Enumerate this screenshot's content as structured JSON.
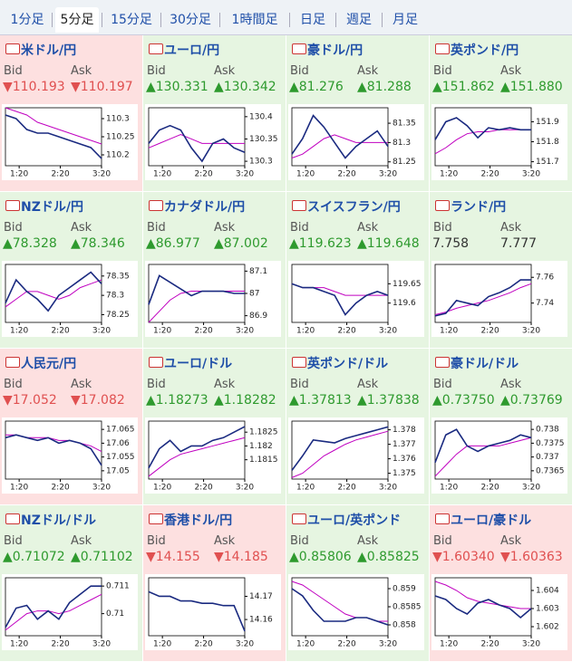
{
  "tabs": [
    "1分足",
    "5分足",
    "15分足",
    "30分足",
    "1時間足",
    "日足",
    "週足",
    "月足"
  ],
  "selected_tab": 1,
  "labels": {
    "bid": "Bid",
    "ask": "Ask"
  },
  "time_axis": {
    "xlim": [
      60,
      200
    ],
    "xticks": [
      {
        "value": 80,
        "label": "1:20"
      },
      {
        "value": 140,
        "label": "2:20"
      },
      {
        "value": 200,
        "label": "3:20"
      }
    ]
  },
  "chart_data": [
    {
      "type": "line",
      "title": "米ドル/円",
      "trend": "down",
      "bid": "▼110.193",
      "ask": "▼110.197",
      "ylim": [
        110.17,
        110.33
      ],
      "yticks": [
        110.3,
        110.25,
        110.2
      ],
      "color": "#1a2a80",
      "ma_color": "#c000c0",
      "values": [
        110.31,
        110.3,
        110.27,
        110.26,
        110.26,
        110.25,
        110.24,
        110.23,
        110.22,
        110.19
      ],
      "ma": [
        110.33,
        110.32,
        110.31,
        110.29,
        110.28,
        110.27,
        110.26,
        110.25,
        110.24,
        110.23
      ]
    },
    {
      "type": "line",
      "title": "ユーロ/円",
      "trend": "up",
      "bid": "▲130.331",
      "ask": "▲130.342",
      "ylim": [
        130.29,
        130.42
      ],
      "yticks": [
        130.4,
        130.35,
        130.3
      ],
      "color": "#1a2a80",
      "ma_color": "#c000c0",
      "values": [
        130.34,
        130.37,
        130.38,
        130.37,
        130.33,
        130.3,
        130.34,
        130.35,
        130.33,
        130.32
      ],
      "ma": [
        130.33,
        130.34,
        130.35,
        130.36,
        130.35,
        130.34,
        130.34,
        130.34,
        130.34,
        130.34
      ]
    },
    {
      "type": "line",
      "title": "豪ドル/円",
      "trend": "up",
      "bid": "▲81.276",
      "ask": "▲81.288",
      "ylim": [
        81.24,
        81.39
      ],
      "yticks": [
        81.35,
        81.3,
        81.25
      ],
      "color": "#1a2a80",
      "ma_color": "#c000c0",
      "values": [
        81.27,
        81.31,
        81.37,
        81.34,
        81.3,
        81.26,
        81.29,
        81.31,
        81.33,
        81.29
      ],
      "ma": [
        81.26,
        81.27,
        81.29,
        81.31,
        81.32,
        81.31,
        81.3,
        81.3,
        81.3,
        81.3
      ]
    },
    {
      "type": "line",
      "title": "英ポンド/円",
      "trend": "up",
      "bid": "▲151.862",
      "ask": "▲151.880",
      "ylim": [
        151.68,
        151.97
      ],
      "yticks": [
        151.9,
        151.8,
        151.7
      ],
      "color": "#1a2a80",
      "ma_color": "#c000c0",
      "values": [
        151.81,
        151.9,
        151.92,
        151.88,
        151.82,
        151.87,
        151.86,
        151.87,
        151.86,
        151.86
      ],
      "ma": [
        151.74,
        151.77,
        151.81,
        151.84,
        151.85,
        151.85,
        151.86,
        151.86,
        151.86,
        151.86
      ]
    },
    {
      "type": "line",
      "title": "NZドル/円",
      "trend": "up",
      "bid": "▲78.328",
      "ask": "▲78.346",
      "ylim": [
        78.23,
        78.38
      ],
      "yticks": [
        78.35,
        78.3,
        78.25
      ],
      "color": "#1a2a80",
      "ma_color": "#c000c0",
      "values": [
        78.28,
        78.34,
        78.31,
        78.29,
        78.26,
        78.3,
        78.32,
        78.34,
        78.36,
        78.33
      ],
      "ma": [
        78.27,
        78.29,
        78.31,
        78.31,
        78.3,
        78.29,
        78.3,
        78.32,
        78.33,
        78.34
      ]
    },
    {
      "type": "line",
      "title": "カナダドル/円",
      "trend": "up",
      "bid": "▲86.977",
      "ask": "▲87.002",
      "ylim": [
        86.87,
        87.13
      ],
      "yticks": [
        87.1,
        87,
        86.9
      ],
      "color": "#1a2a80",
      "ma_color": "#c000c0",
      "values": [
        86.95,
        87.08,
        87.05,
        87.02,
        86.99,
        87.01,
        87.01,
        87.01,
        87.0,
        87.0
      ],
      "ma": [
        86.87,
        86.92,
        86.97,
        87.0,
        87.01,
        87.01,
        87.01,
        87.01,
        87.01,
        87.01
      ]
    },
    {
      "type": "line",
      "title": "スイスフラン/円",
      "trend": "up",
      "bid": "▲119.623",
      "ask": "▲119.648",
      "ylim": [
        119.55,
        119.7
      ],
      "yticks": [
        119.65,
        119.6
      ],
      "color": "#1a2a80",
      "ma_color": "#c000c0",
      "values": [
        119.65,
        119.64,
        119.64,
        119.63,
        119.62,
        119.57,
        119.6,
        119.62,
        119.63,
        119.62
      ],
      "ma": [
        119.65,
        119.64,
        119.64,
        119.64,
        119.63,
        119.62,
        119.62,
        119.62,
        119.62,
        119.62
      ]
    },
    {
      "type": "line",
      "title": "ランド/円",
      "trend": "flat",
      "bid": "7.758",
      "ask": "7.777",
      "ylim": [
        7.725,
        7.77
      ],
      "yticks": [
        7.76,
        7.74
      ],
      "color": "#1a2a80",
      "ma_color": "#c000c0",
      "values": [
        7.73,
        7.732,
        7.742,
        7.74,
        7.738,
        7.745,
        7.748,
        7.752,
        7.758,
        7.758
      ],
      "ma": [
        7.731,
        7.733,
        7.736,
        7.738,
        7.74,
        7.742,
        7.745,
        7.748,
        7.752,
        7.755
      ]
    },
    {
      "type": "line",
      "title": "人民元/円",
      "trend": "down",
      "bid": "▼17.052",
      "ask": "▼17.082",
      "ylim": [
        17.047,
        17.068
      ],
      "yticks": [
        17.065,
        17.06,
        17.055,
        17.05
      ],
      "color": "#1a2a80",
      "ma_color": "#c000c0",
      "values": [
        17.062,
        17.063,
        17.062,
        17.061,
        17.062,
        17.06,
        17.061,
        17.06,
        17.058,
        17.052
      ],
      "ma": [
        17.063,
        17.063,
        17.062,
        17.062,
        17.062,
        17.061,
        17.061,
        17.06,
        17.059,
        17.057
      ]
    },
    {
      "type": "line",
      "title": "ユーロ/ドル",
      "trend": "up",
      "bid": "▲1.18273",
      "ask": "▲1.18282",
      "ylim": [
        1.1808,
        1.1829
      ],
      "yticks": [
        1.1825,
        1.182,
        1.1815
      ],
      "color": "#1a2a80",
      "ma_color": "#c000c0",
      "values": [
        1.1812,
        1.1819,
        1.1822,
        1.1818,
        1.182,
        1.182,
        1.1822,
        1.1823,
        1.1825,
        1.1827
      ],
      "ma": [
        1.1809,
        1.1812,
        1.1815,
        1.1817,
        1.1818,
        1.1819,
        1.182,
        1.1821,
        1.1822,
        1.1823
      ]
    },
    {
      "type": "line",
      "title": "英ポンド/ドル",
      "trend": "up",
      "bid": "▲1.37813",
      "ask": "▲1.37838",
      "ylim": [
        1.3746,
        1.3786
      ],
      "yticks": [
        1.378,
        1.377,
        1.376,
        1.375
      ],
      "color": "#1a2a80",
      "ma_color": "#c000c0",
      "values": [
        1.3752,
        1.3762,
        1.3773,
        1.3772,
        1.3771,
        1.3774,
        1.3776,
        1.3778,
        1.378,
        1.3782
      ],
      "ma": [
        1.3747,
        1.375,
        1.3756,
        1.3762,
        1.3766,
        1.377,
        1.3773,
        1.3775,
        1.3777,
        1.3779
      ]
    },
    {
      "type": "line",
      "title": "豪ドル/ドル",
      "trend": "up",
      "bid": "▲0.73750",
      "ask": "▲0.73769",
      "ylim": [
        0.7362,
        0.7383
      ],
      "yticks": [
        0.738,
        0.7375,
        0.737,
        0.7365
      ],
      "color": "#1a2a80",
      "ma_color": "#c000c0",
      "values": [
        0.7368,
        0.7378,
        0.738,
        0.7374,
        0.7372,
        0.7374,
        0.7375,
        0.7376,
        0.7378,
        0.7377
      ],
      "ma": [
        0.7363,
        0.7367,
        0.7371,
        0.7374,
        0.7374,
        0.7374,
        0.7374,
        0.7375,
        0.7376,
        0.7377
      ]
    },
    {
      "type": "line",
      "title": "NZドル/ドル",
      "trend": "up",
      "bid": "▲0.71072",
      "ask": "▲0.71102",
      "ylim": [
        0.7092,
        0.7113
      ],
      "yticks": [
        0.711,
        0.71
      ],
      "color": "#1a2a80",
      "ma_color": "#c000c0",
      "values": [
        0.7095,
        0.7102,
        0.7103,
        0.7098,
        0.7101,
        0.7098,
        0.7104,
        0.7107,
        0.711,
        0.711
      ],
      "ma": [
        0.7094,
        0.7097,
        0.71,
        0.7101,
        0.7101,
        0.71,
        0.7101,
        0.7103,
        0.7105,
        0.7107
      ]
    },
    {
      "type": "line",
      "title": "香港ドル/円",
      "trend": "down",
      "bid": "▼14.155",
      "ask": "▼14.185",
      "ylim": [
        14.153,
        14.178
      ],
      "yticks": [
        14.17,
        14.16
      ],
      "color": "#1a2a80",
      "ma_color": "#c000c0",
      "values": [
        14.172,
        14.17,
        14.17,
        14.168,
        14.168,
        14.167,
        14.167,
        14.166,
        14.166,
        14.155
      ]
    },
    {
      "type": "line",
      "title": "ユーロ/英ポンド",
      "trend": "up",
      "bid": "▲0.85806",
      "ask": "▲0.85825",
      "ylim": [
        0.8577,
        0.8593
      ],
      "yticks": [
        0.859,
        0.8585,
        0.858
      ],
      "color": "#1a2a80",
      "ma_color": "#c000c0",
      "values": [
        0.859,
        0.8588,
        0.8584,
        0.8581,
        0.8581,
        0.8581,
        0.8582,
        0.8582,
        0.8581,
        0.858
      ],
      "ma": [
        0.8592,
        0.8591,
        0.8589,
        0.8587,
        0.8585,
        0.8583,
        0.8582,
        0.8582,
        0.8581,
        0.8581
      ]
    },
    {
      "type": "line",
      "title": "ユーロ/豪ドル",
      "trend": "down",
      "bid": "▼1.60340",
      "ask": "▼1.60363",
      "ylim": [
        1.6015,
        1.6047
      ],
      "yticks": [
        1.604,
        1.603,
        1.602
      ],
      "color": "#1a2a80",
      "ma_color": "#c000c0",
      "values": [
        1.6037,
        1.6035,
        1.603,
        1.6027,
        1.6033,
        1.6035,
        1.6032,
        1.603,
        1.6025,
        1.603
      ],
      "ma": [
        1.6045,
        1.6043,
        1.604,
        1.6036,
        1.6034,
        1.6033,
        1.6032,
        1.6031,
        1.603,
        1.603
      ]
    }
  ]
}
